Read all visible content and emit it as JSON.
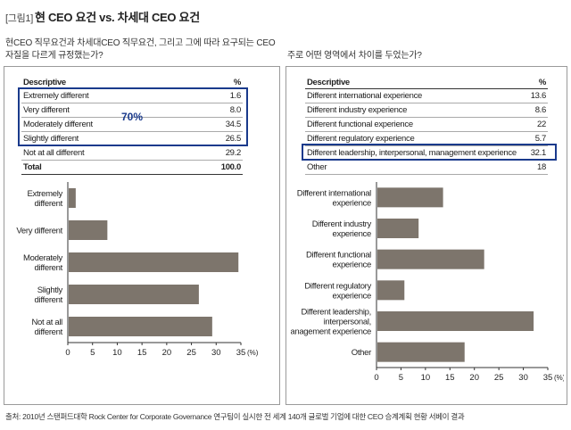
{
  "figure": {
    "tag": "[그림1]",
    "title": "현 CEO 요건 vs. 차세대 CEO 요건"
  },
  "left": {
    "question_line1": "현CEO 직무요건과 차세대CEO 직무요건, 그리고 그에 따라 요구되는 CEO",
    "question_line2": "자질을 다르게 규정했는가?",
    "table": {
      "header_desc": "Descriptive",
      "header_pct": "%",
      "rows": [
        {
          "label": "Extremely different",
          "value": "1.6"
        },
        {
          "label": "Very different",
          "value": "8.0"
        },
        {
          "label": "Moderately different",
          "value": "34.5"
        },
        {
          "label": "Slightly different",
          "value": "26.5"
        },
        {
          "label": "Not at all different",
          "value": "29.2"
        }
      ],
      "total_label": "Total",
      "total_value": "100.0"
    },
    "callout": "70%",
    "highlight_color": "#1a3a8c"
  },
  "right": {
    "question": "주로 어떤 영역에서 차이를 두었는가?",
    "table": {
      "header_desc": "Descriptive",
      "header_pct": "%",
      "rows": [
        {
          "label": "Different international experience",
          "value": "13.6"
        },
        {
          "label": "Different industry experience",
          "value": "8.6"
        },
        {
          "label": "Different functional experience",
          "value": "22"
        },
        {
          "label": "Different regulatory experience",
          "value": "5.7"
        },
        {
          "label": "Different leadership, interpersonal, management experience",
          "value": "32.1"
        },
        {
          "label": "Other",
          "value": "18"
        }
      ]
    },
    "highlight_color": "#1a3a8c"
  },
  "chart_data": [
    {
      "type": "bar",
      "orientation": "horizontal",
      "categories": [
        [
          "Extremely",
          "different"
        ],
        [
          "Very different"
        ],
        [
          "Moderately",
          "different"
        ],
        [
          "Slightly",
          "different"
        ],
        [
          "Not at all",
          "different"
        ]
      ],
      "values": [
        1.6,
        8.0,
        34.5,
        26.5,
        29.2
      ],
      "xlim": [
        0,
        35
      ],
      "xticks": [
        0,
        5,
        10,
        15,
        20,
        25,
        30,
        35
      ],
      "unit": "(%)",
      "bar_color": "#7d756c",
      "grid": false
    },
    {
      "type": "bar",
      "orientation": "horizontal",
      "categories": [
        [
          "Different international",
          "experience"
        ],
        [
          "Different industry",
          "experience"
        ],
        [
          "Different functional",
          "experience"
        ],
        [
          "Different regulatory",
          "experience"
        ],
        [
          "Different leadership,",
          "interpersonal,",
          "management experience"
        ],
        [
          "Other"
        ]
      ],
      "values": [
        13.6,
        8.6,
        22,
        5.7,
        32.1,
        18
      ],
      "xlim": [
        0,
        35
      ],
      "xticks": [
        0,
        5,
        10,
        15,
        20,
        25,
        30,
        35
      ],
      "unit": "(%)",
      "bar_color": "#7d756c",
      "grid": false
    }
  ],
  "source": "출처: 2010년 스탠퍼드대학 Rock Center for Corporate Governance 연구팀이 실시한 전 세계 140개 글로벌 기업에 대한 CEO 승계계획 현황 서베이 결과"
}
